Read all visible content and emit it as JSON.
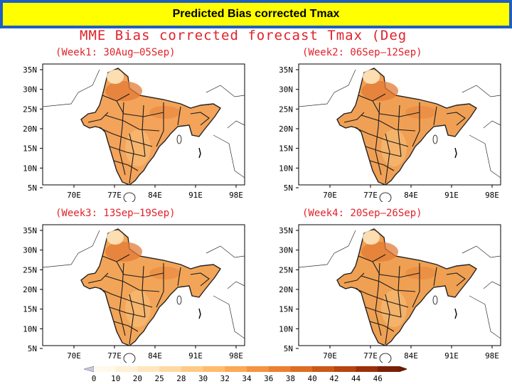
{
  "slide": {
    "title": "Predicted Bias corrected Tmax"
  },
  "figure": {
    "title": "MME  Bias  corrected  forecast  Tmax  (Deg"
  },
  "panels": [
    {
      "label": "(Week1:  30Aug—05Sep)"
    },
    {
      "label": "(Week2:  06Sep—12Sep)"
    },
    {
      "label": "(Week3:  13Sep—19Sep)"
    },
    {
      "label": "(Week4:  20Sep—26Sep)"
    }
  ],
  "axes": {
    "lat_labels": [
      "35N",
      "30N",
      "25N",
      "20N",
      "15N",
      "10N",
      "5N"
    ],
    "lon_labels": [
      "70E",
      "77E",
      "84E",
      "91E",
      "98E"
    ]
  },
  "colorbar": {
    "labels": [
      "0",
      "10",
      "20",
      "25",
      "28",
      "30",
      "32",
      "34",
      "36",
      "38",
      "40",
      "42",
      "44",
      "46"
    ],
    "colors": [
      "#fff9ec",
      "#fff1d6",
      "#ffe6bc",
      "#ffd9a2",
      "#ffca86",
      "#ffbb6c",
      "#fca855",
      "#f59440",
      "#ec8030",
      "#de6c22",
      "#cc5818",
      "#b84410",
      "#9a300a",
      "#7a2006"
    ]
  }
}
